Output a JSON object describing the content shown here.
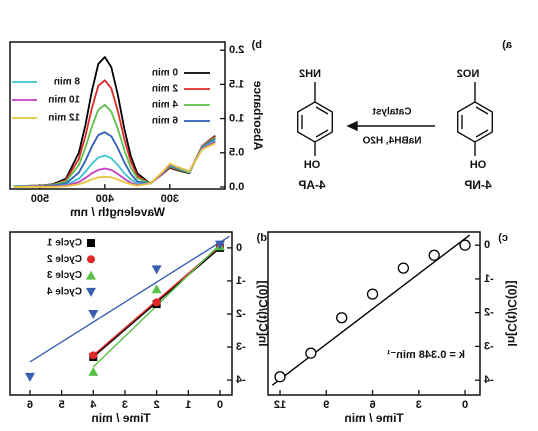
{
  "scheme": {
    "panel_label": "a)",
    "reactant": {
      "top": "NO2",
      "bottom": "OH",
      "name": "4-NP"
    },
    "product": {
      "top": "NH2",
      "bottom": "OH",
      "name": "4-AP"
    },
    "above_arrow": "Catalyst",
    "below_arrow": "NaBH4, H2O"
  },
  "chart_data": [
    {
      "type": "line",
      "panel_label": "b)",
      "x_label": "Wavelength / nm",
      "y_label": "Absorbance",
      "x": [
        230,
        250,
        270,
        290,
        300,
        310,
        330,
        350,
        360,
        370,
        380,
        390,
        400,
        410,
        420,
        430,
        440,
        460,
        480,
        500,
        540
      ],
      "xlim": [
        215,
        546
      ],
      "xticks": [
        300,
        400,
        500
      ],
      "ylim": [
        -0.03,
        2.12
      ],
      "yticks": [
        {
          "value": 0,
          "label": "0.0"
        },
        0.5,
        {
          "value": 1,
          "label": "1.0"
        },
        1.5,
        {
          "value": 2,
          "label": "2.0"
        }
      ],
      "series": [
        {
          "name": "0 min",
          "color": "#000000",
          "values": [
            0.75,
            0.6,
            0.2,
            0.25,
            0.28,
            0.2,
            0.05,
            0.2,
            0.45,
            0.85,
            1.35,
            1.75,
            1.9,
            1.8,
            1.4,
            0.9,
            0.5,
            0.12,
            0.04,
            0.02,
            0.01
          ]
        },
        {
          "name": "2 min",
          "color": "#e02828",
          "values": [
            0.74,
            0.6,
            0.21,
            0.26,
            0.29,
            0.2,
            0.05,
            0.16,
            0.37,
            0.7,
            1.11,
            1.44,
            1.56,
            1.48,
            1.15,
            0.74,
            0.41,
            0.1,
            0.03,
            0.02,
            0.01
          ]
        },
        {
          "name": "4 min",
          "color": "#5cc14a",
          "values": [
            0.72,
            0.59,
            0.21,
            0.27,
            0.3,
            0.21,
            0.05,
            0.13,
            0.28,
            0.54,
            0.85,
            1.1,
            1.2,
            1.13,
            0.88,
            0.57,
            0.32,
            0.08,
            0.03,
            0.02,
            0.01
          ]
        },
        {
          "name": "6 min",
          "color": "#2f5fb8",
          "values": [
            0.7,
            0.58,
            0.22,
            0.28,
            0.31,
            0.21,
            0.05,
            0.08,
            0.19,
            0.36,
            0.57,
            0.74,
            0.8,
            0.76,
            0.59,
            0.38,
            0.21,
            0.05,
            0.02,
            0.01,
            0.01
          ]
        },
        {
          "name": "8 min",
          "color": "#3ec3d3",
          "values": [
            0.68,
            0.57,
            0.22,
            0.29,
            0.32,
            0.22,
            0.05,
            0.05,
            0.11,
            0.2,
            0.32,
            0.42,
            0.46,
            0.43,
            0.34,
            0.22,
            0.12,
            0.03,
            0.01,
            0.01,
            0.01
          ]
        },
        {
          "name": "10 min",
          "color": "#c43fc4",
          "values": [
            0.66,
            0.56,
            0.23,
            0.3,
            0.33,
            0.22,
            0.05,
            0.03,
            0.06,
            0.12,
            0.19,
            0.25,
            0.27,
            0.25,
            0.2,
            0.13,
            0.07,
            0.02,
            0.01,
            0.01,
            0
          ]
        },
        {
          "name": "12 min",
          "color": "#e8c53a",
          "values": [
            0.64,
            0.55,
            0.23,
            0.3,
            0.34,
            0.23,
            0.05,
            0.02,
            0.04,
            0.07,
            0.11,
            0.14,
            0.15,
            0.14,
            0.11,
            0.07,
            0.04,
            0.01,
            0,
            0,
            0
          ]
        }
      ]
    },
    {
      "type": "scatter",
      "panel_label": "c)",
      "x_label": "Time / min",
      "y_label": "ln[C(t)/C(0)]",
      "annotation": "k = 0.348 min⁻¹",
      "xlim": [
        -0.97,
        12.78
      ],
      "xticks": [
        0,
        3,
        6,
        9,
        12
      ],
      "ylim": [
        -4.44,
        0.39
      ],
      "yticks": [
        0,
        -1,
        -2,
        -3,
        -4
      ],
      "series": [
        {
          "color": "#000000",
          "marker": "circle-open",
          "x": [
            0,
            2,
            4,
            6,
            8,
            10,
            12
          ],
          "values": [
            0,
            -0.3,
            -0.68,
            -1.45,
            -2.15,
            -3.2,
            -3.9
          ],
          "fit": {
            "x": [
              -0.3,
              12.5
            ],
            "y": [
              0.3,
              -4.15
            ]
          }
        }
      ]
    },
    {
      "type": "scatter",
      "panel_label": "d)",
      "x_label": "Time / min",
      "y_label": "ln[C(t)/C(0)]",
      "xlim": [
        -0.38,
        6.63
      ],
      "xticks": [
        0,
        1,
        2,
        3,
        4,
        5,
        6
      ],
      "ylim": [
        -4.45,
        0.48
      ],
      "yticks": [
        0,
        -1,
        -2,
        -3,
        -4
      ],
      "series": [
        {
          "name": "Cycle 1",
          "color": "#000000",
          "marker": "square",
          "x": [
            0,
            2,
            4
          ],
          "values": [
            0,
            -1.7,
            -3.3
          ],
          "fit": {
            "x": [
              0,
              4
            ],
            "y": [
              0,
              -3.3
            ]
          }
        },
        {
          "name": "Cycle 2",
          "color": "#e02828",
          "marker": "circle",
          "x": [
            0,
            2,
            4
          ],
          "values": [
            0.05,
            -1.65,
            -3.25
          ],
          "fit": {
            "x": [
              0,
              4
            ],
            "y": [
              0.05,
              -3.25
            ]
          }
        },
        {
          "name": "Cycle 3",
          "color": "#5cc14a",
          "marker": "triangle-up",
          "x": [
            0,
            2,
            4
          ],
          "values": [
            0.05,
            -1.25,
            -3.75
          ],
          "fit": {
            "x": [
              0,
              4
            ],
            "y": [
              0.1,
              -3.6
            ]
          }
        },
        {
          "name": "Cycle 4",
          "color": "#3a5fb0",
          "marker": "triangle-down",
          "x": [
            0,
            2,
            4,
            6
          ],
          "values": [
            0.1,
            -0.65,
            -2.0,
            -3.9
          ],
          "fit": {
            "x": [
              -0.3,
              6
            ],
            "y": [
              0.35,
              -3.45
            ]
          }
        }
      ]
    }
  ]
}
